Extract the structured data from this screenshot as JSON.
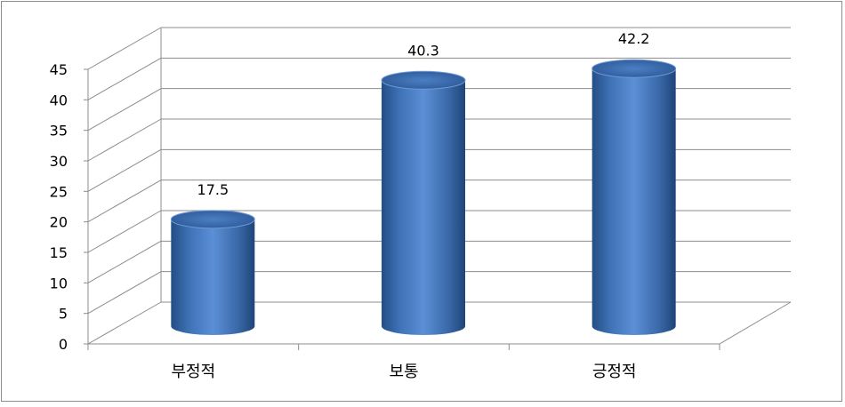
{
  "chart_data": {
    "type": "bar",
    "style": "3d-cylinder",
    "categories": [
      "부정적",
      "보통",
      "긍정적"
    ],
    "values": [
      17.5,
      40.3,
      42.2
    ],
    "data_labels": [
      "17.5",
      "40.3",
      "42.2"
    ],
    "ylim": [
      0,
      45
    ],
    "y_ticks": [
      0,
      5,
      10,
      15,
      20,
      25,
      30,
      35,
      40,
      45
    ],
    "grid": true,
    "legend": "none",
    "colors": {
      "bar": "#4a7ec4",
      "bar_dark": "#234e86",
      "bar_top": "#3d6bab",
      "grid": "#8c8c8c",
      "frame": "#8c8c8c"
    }
  }
}
